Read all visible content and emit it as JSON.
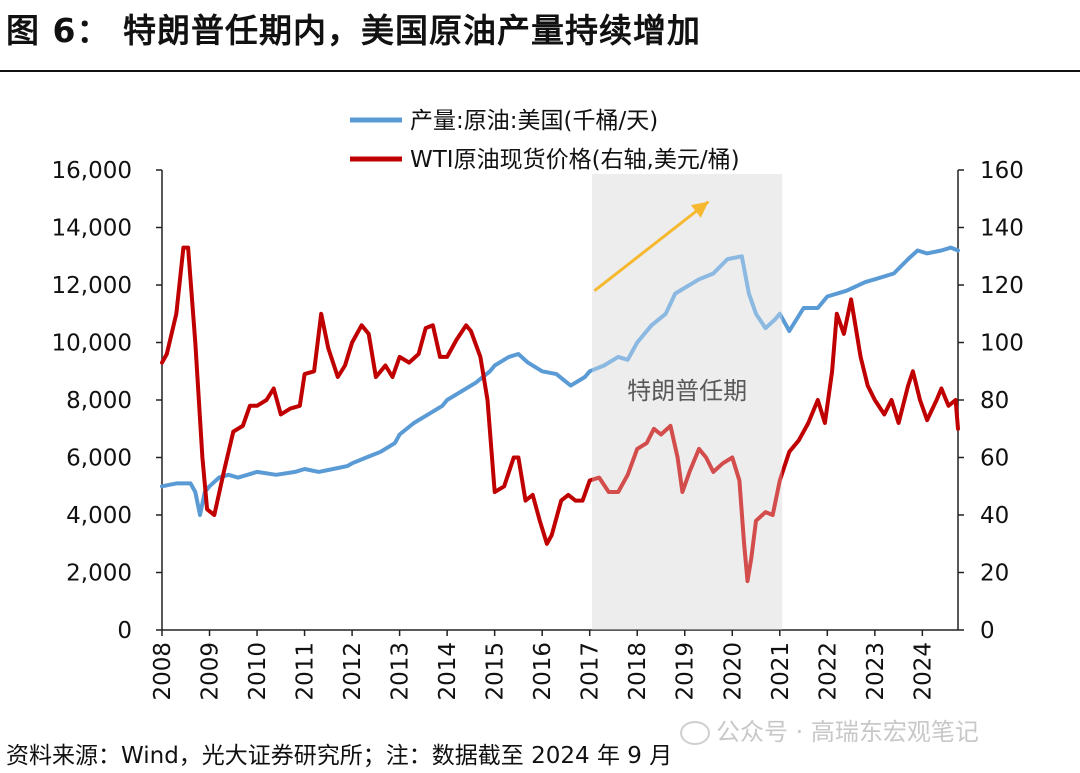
{
  "figure_title": "图 6： 特朗普任期内，美国原油产量持续增加",
  "source_note": "资料来源：Wind，光大证券研究所；注：数据截至 2024 年 9 月",
  "watermark": "公众号 · 高瑞东宏观笔记",
  "chart_data": {
    "type": "line",
    "title": "",
    "x_range": [
      2008.0,
      2024.75
    ],
    "x_ticks": [
      "2008",
      "2009",
      "2010",
      "2011",
      "2012",
      "2013",
      "2014",
      "2015",
      "2016",
      "2017",
      "2018",
      "2019",
      "2020",
      "2021",
      "2022",
      "2023",
      "2024"
    ],
    "left_axis": {
      "min": 0,
      "max": 16000,
      "ticks": [
        "0",
        "2,000",
        "4,000",
        "6,000",
        "8,000",
        "10,000",
        "12,000",
        "14,000",
        "16,000"
      ]
    },
    "right_axis": {
      "min": 0,
      "max": 160,
      "ticks": [
        "0",
        "20",
        "40",
        "60",
        "80",
        "100",
        "120",
        "140",
        "160"
      ]
    },
    "grid": false,
    "legend_position": "top",
    "shaded_region": {
      "label": "特朗普任期",
      "x_start": 2017.05,
      "x_end": 2021.05,
      "color": "#e6e6e6"
    },
    "annotation_arrow": {
      "from": [
        2017.1,
        11800
      ],
      "to": [
        2019.5,
        14900
      ],
      "color": "#f5b82e"
    },
    "series": [
      {
        "name": "产量:原油:美国(千桶/天)",
        "axis": "left",
        "color": "#5b9bd5",
        "points": [
          [
            2008.0,
            5000
          ],
          [
            2008.3,
            5100
          ],
          [
            2008.6,
            5100
          ],
          [
            2008.7,
            4800
          ],
          [
            2008.8,
            4000
          ],
          [
            2008.9,
            4800
          ],
          [
            2009.0,
            5000
          ],
          [
            2009.2,
            5300
          ],
          [
            2009.4,
            5400
          ],
          [
            2009.6,
            5300
          ],
          [
            2009.8,
            5400
          ],
          [
            2010.0,
            5500
          ],
          [
            2010.4,
            5400
          ],
          [
            2010.8,
            5500
          ],
          [
            2011.0,
            5600
          ],
          [
            2011.3,
            5500
          ],
          [
            2011.6,
            5600
          ],
          [
            2011.9,
            5700
          ],
          [
            2012.0,
            5800
          ],
          [
            2012.3,
            6000
          ],
          [
            2012.6,
            6200
          ],
          [
            2012.9,
            6500
          ],
          [
            2013.0,
            6800
          ],
          [
            2013.3,
            7200
          ],
          [
            2013.6,
            7500
          ],
          [
            2013.9,
            7800
          ],
          [
            2014.0,
            8000
          ],
          [
            2014.3,
            8300
          ],
          [
            2014.6,
            8600
          ],
          [
            2014.9,
            9000
          ],
          [
            2015.0,
            9200
          ],
          [
            2015.3,
            9500
          ],
          [
            2015.5,
            9600
          ],
          [
            2015.7,
            9300
          ],
          [
            2016.0,
            9000
          ],
          [
            2016.3,
            8900
          ],
          [
            2016.6,
            8500
          ],
          [
            2016.9,
            8800
          ],
          [
            2017.0,
            9000
          ],
          [
            2017.3,
            9200
          ],
          [
            2017.6,
            9500
          ],
          [
            2017.8,
            9400
          ],
          [
            2018.0,
            10000
          ],
          [
            2018.3,
            10600
          ],
          [
            2018.6,
            11000
          ],
          [
            2018.8,
            11700
          ],
          [
            2019.0,
            11900
          ],
          [
            2019.3,
            12200
          ],
          [
            2019.6,
            12400
          ],
          [
            2019.9,
            12900
          ],
          [
            2020.2,
            13000
          ],
          [
            2020.35,
            11700
          ],
          [
            2020.5,
            11000
          ],
          [
            2020.7,
            10500
          ],
          [
            2020.9,
            10800
          ],
          [
            2021.0,
            11000
          ],
          [
            2021.2,
            10400
          ],
          [
            2021.5,
            11200
          ],
          [
            2021.8,
            11200
          ],
          [
            2022.0,
            11600
          ],
          [
            2022.4,
            11800
          ],
          [
            2022.8,
            12100
          ],
          [
            2023.0,
            12200
          ],
          [
            2023.4,
            12400
          ],
          [
            2023.7,
            12900
          ],
          [
            2023.9,
            13200
          ],
          [
            2024.1,
            13100
          ],
          [
            2024.4,
            13200
          ],
          [
            2024.6,
            13300
          ],
          [
            2024.75,
            13200
          ]
        ]
      },
      {
        "name": "WTI原油现货价格(右轴,美元/桶)",
        "axis": "right",
        "color": "#c00000",
        "points": [
          [
            2008.0,
            93
          ],
          [
            2008.1,
            96
          ],
          [
            2008.3,
            110
          ],
          [
            2008.45,
            133
          ],
          [
            2008.55,
            133
          ],
          [
            2008.7,
            100
          ],
          [
            2008.85,
            60
          ],
          [
            2008.95,
            42
          ],
          [
            2009.1,
            40
          ],
          [
            2009.3,
            55
          ],
          [
            2009.5,
            69
          ],
          [
            2009.7,
            71
          ],
          [
            2009.85,
            78
          ],
          [
            2010.0,
            78
          ],
          [
            2010.2,
            80
          ],
          [
            2010.35,
            84
          ],
          [
            2010.5,
            75
          ],
          [
            2010.7,
            77
          ],
          [
            2010.9,
            78
          ],
          [
            2011.0,
            89
          ],
          [
            2011.2,
            90
          ],
          [
            2011.35,
            110
          ],
          [
            2011.5,
            98
          ],
          [
            2011.7,
            88
          ],
          [
            2011.85,
            92
          ],
          [
            2012.0,
            100
          ],
          [
            2012.2,
            106
          ],
          [
            2012.35,
            103
          ],
          [
            2012.5,
            88
          ],
          [
            2012.7,
            92
          ],
          [
            2012.85,
            88
          ],
          [
            2013.0,
            95
          ],
          [
            2013.2,
            93
          ],
          [
            2013.4,
            96
          ],
          [
            2013.55,
            105
          ],
          [
            2013.7,
            106
          ],
          [
            2013.85,
            95
          ],
          [
            2014.0,
            95
          ],
          [
            2014.2,
            101
          ],
          [
            2014.4,
            106
          ],
          [
            2014.5,
            104
          ],
          [
            2014.7,
            95
          ],
          [
            2014.85,
            80
          ],
          [
            2015.0,
            48
          ],
          [
            2015.2,
            50
          ],
          [
            2015.4,
            60
          ],
          [
            2015.5,
            60
          ],
          [
            2015.65,
            45
          ],
          [
            2015.8,
            47
          ],
          [
            2015.95,
            38
          ],
          [
            2016.1,
            30
          ],
          [
            2016.2,
            33
          ],
          [
            2016.4,
            45
          ],
          [
            2016.55,
            47
          ],
          [
            2016.7,
            45
          ],
          [
            2016.85,
            45
          ],
          [
            2017.0,
            52
          ],
          [
            2017.2,
            53
          ],
          [
            2017.4,
            48
          ],
          [
            2017.6,
            48
          ],
          [
            2017.8,
            54
          ],
          [
            2018.0,
            63
          ],
          [
            2018.2,
            65
          ],
          [
            2018.35,
            70
          ],
          [
            2018.5,
            68
          ],
          [
            2018.7,
            71
          ],
          [
            2018.85,
            60
          ],
          [
            2018.95,
            48
          ],
          [
            2019.1,
            55
          ],
          [
            2019.3,
            63
          ],
          [
            2019.45,
            60
          ],
          [
            2019.6,
            55
          ],
          [
            2019.8,
            58
          ],
          [
            2020.0,
            60
          ],
          [
            2020.15,
            52
          ],
          [
            2020.25,
            30
          ],
          [
            2020.32,
            17
          ],
          [
            2020.4,
            25
          ],
          [
            2020.5,
            38
          ],
          [
            2020.7,
            41
          ],
          [
            2020.85,
            40
          ],
          [
            2021.0,
            52
          ],
          [
            2021.2,
            62
          ],
          [
            2021.4,
            66
          ],
          [
            2021.6,
            72
          ],
          [
            2021.8,
            80
          ],
          [
            2021.95,
            72
          ],
          [
            2022.1,
            90
          ],
          [
            2022.2,
            110
          ],
          [
            2022.35,
            103
          ],
          [
            2022.5,
            115
          ],
          [
            2022.7,
            95
          ],
          [
            2022.85,
            85
          ],
          [
            2023.0,
            80
          ],
          [
            2023.2,
            75
          ],
          [
            2023.35,
            80
          ],
          [
            2023.5,
            72
          ],
          [
            2023.7,
            85
          ],
          [
            2023.8,
            90
          ],
          [
            2023.95,
            80
          ],
          [
            2024.1,
            73
          ],
          [
            2024.3,
            80
          ],
          [
            2024.4,
            84
          ],
          [
            2024.55,
            78
          ],
          [
            2024.7,
            80
          ],
          [
            2024.75,
            70
          ]
        ]
      }
    ]
  }
}
